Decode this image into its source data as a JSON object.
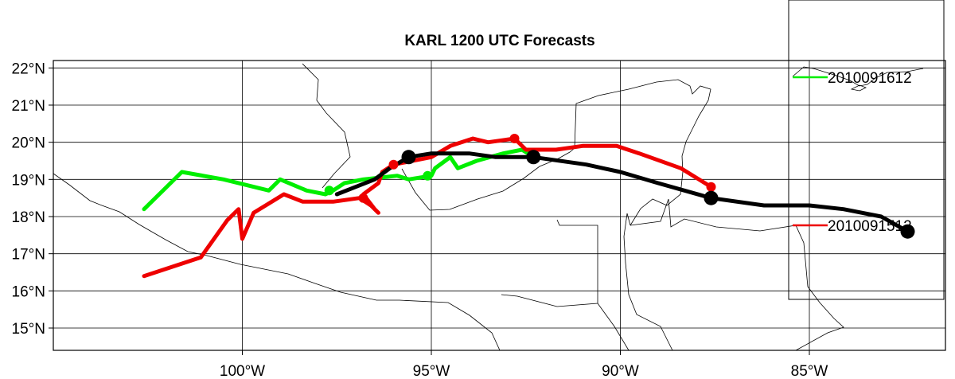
{
  "chart_data": {
    "type": "line",
    "title": "KARL 1200 UTC Forecasts",
    "xlabel": "",
    "ylabel": "",
    "xlim": [
      -105,
      -81.4
    ],
    "ylim": [
      14.4,
      22.2
    ],
    "x_ticks": [
      -100,
      -95,
      -90,
      -85
    ],
    "x_tick_labels": [
      "100°W",
      "95°W",
      "90°W",
      "85°W"
    ],
    "y_ticks": [
      15,
      16,
      17,
      18,
      19,
      20,
      21,
      22
    ],
    "y_tick_labels": [
      "15°N",
      "16°N",
      "17°N",
      "18°N",
      "19°N",
      "20°N",
      "21°N",
      "22°N"
    ],
    "grid": true,
    "legend": "right",
    "colors": {
      "best_track": "#000000",
      "forecast_0916": "#00ee00",
      "forecast_0915": "#ee0000"
    },
    "series": [
      {
        "name": "",
        "role": "best-track",
        "color": "#000000",
        "points": [
          [
            -82.4,
            17.6
          ],
          [
            -83.1,
            18.0
          ],
          [
            -84.1,
            18.2
          ],
          [
            -85.0,
            18.3
          ],
          [
            -86.2,
            18.3
          ],
          [
            -87.6,
            18.5
          ],
          [
            -89.0,
            18.9
          ],
          [
            -90.0,
            19.2
          ],
          [
            -90.9,
            19.4
          ],
          [
            -92.3,
            19.6
          ],
          [
            -93.3,
            19.6
          ],
          [
            -94.0,
            19.7
          ],
          [
            -95.0,
            19.7
          ],
          [
            -95.6,
            19.6
          ],
          [
            -96.1,
            19.3
          ],
          [
            -96.5,
            19.0
          ],
          [
            -97.0,
            18.8
          ],
          [
            -97.5,
            18.6
          ]
        ],
        "markers": [
          [
            -82.4,
            17.6
          ],
          [
            -87.6,
            18.5
          ],
          [
            -92.3,
            19.6
          ],
          [
            -95.6,
            19.6
          ]
        ]
      },
      {
        "name": "2010091612",
        "color": "#00ee00",
        "points": [
          [
            -92.3,
            19.6
          ],
          [
            -92.6,
            19.8
          ],
          [
            -93.1,
            19.7
          ],
          [
            -93.8,
            19.5
          ],
          [
            -94.3,
            19.3
          ],
          [
            -94.5,
            19.6
          ],
          [
            -94.9,
            19.3
          ],
          [
            -95.0,
            19.1
          ],
          [
            -95.6,
            19.0
          ],
          [
            -95.9,
            19.1
          ],
          [
            -96.8,
            19.0
          ],
          [
            -97.3,
            18.9
          ],
          [
            -97.6,
            18.7
          ],
          [
            -97.8,
            18.6
          ],
          [
            -98.3,
            18.7
          ],
          [
            -99.0,
            19.0
          ],
          [
            -99.3,
            18.7
          ],
          [
            -100.5,
            19.0
          ],
          [
            -101.6,
            19.2
          ],
          [
            -102.6,
            18.2
          ]
        ],
        "markers": [
          [
            -92.3,
            19.6
          ],
          [
            -95.1,
            19.1
          ],
          [
            -97.7,
            18.7
          ]
        ]
      },
      {
        "name": "2010091512",
        "color": "#ee0000",
        "points": [
          [
            -87.6,
            18.8
          ],
          [
            -88.4,
            19.3
          ],
          [
            -89.5,
            19.7
          ],
          [
            -90.1,
            19.9
          ],
          [
            -91.0,
            19.9
          ],
          [
            -91.7,
            19.8
          ],
          [
            -92.5,
            19.8
          ],
          [
            -92.8,
            20.1
          ],
          [
            -93.5,
            20.0
          ],
          [
            -93.9,
            20.1
          ],
          [
            -94.5,
            19.9
          ],
          [
            -95.0,
            19.6
          ],
          [
            -95.5,
            19.5
          ],
          [
            -96.0,
            19.4
          ],
          [
            -96.3,
            19.2
          ],
          [
            -96.4,
            18.9
          ],
          [
            -96.8,
            18.6
          ],
          [
            -96.5,
            18.2
          ],
          [
            -96.4,
            18.1
          ],
          [
            -96.6,
            18.3
          ],
          [
            -96.9,
            18.5
          ],
          [
            -97.6,
            18.4
          ],
          [
            -98.4,
            18.4
          ],
          [
            -98.9,
            18.6
          ],
          [
            -99.7,
            18.1
          ],
          [
            -100.0,
            17.4
          ],
          [
            -100.1,
            18.2
          ],
          [
            -100.4,
            17.9
          ],
          [
            -101.1,
            16.9
          ],
          [
            -102.6,
            16.4
          ]
        ],
        "markers": [
          [
            -87.6,
            18.8
          ],
          [
            -92.8,
            20.1
          ],
          [
            -96.0,
            19.4
          ],
          [
            -96.8,
            18.5
          ]
        ]
      }
    ]
  }
}
